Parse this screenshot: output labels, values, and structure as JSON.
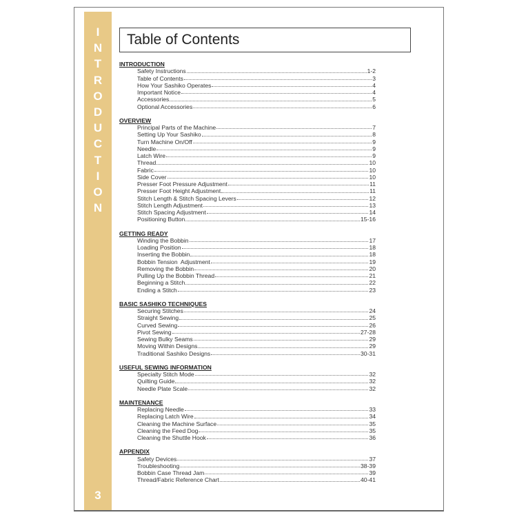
{
  "sidebar": {
    "label_letters": [
      "I",
      "N",
      "T",
      "R",
      "O",
      "D",
      "U",
      "C",
      "T",
      "I",
      "O",
      "N"
    ],
    "page_number": "3",
    "color": "#e8c987"
  },
  "title": "Table of Contents",
  "sections": [
    {
      "heading": "INTRODUCTION",
      "items": [
        {
          "label": "Safety Instructions",
          "page": "1-2"
        },
        {
          "label": "Table of Contents",
          "page": "3"
        },
        {
          "label": "How Your Sashiko Operates",
          "page": "4"
        },
        {
          "label": "Important Notice",
          "page": "4"
        },
        {
          "label": "Accessories",
          "page": "5"
        },
        {
          "label": "Optional Accessories",
          "page": "6"
        }
      ]
    },
    {
      "heading": "OVERVIEW",
      "items": [
        {
          "label": "Principal Parts of the Machine",
          "page": "7"
        },
        {
          "label": "Setting Up Your Sashiko",
          "page": "8"
        },
        {
          "label": "Turn Machine On/Off",
          "page": "9"
        },
        {
          "label": "Needle",
          "page": "9"
        },
        {
          "label": "Latch Wire",
          "page": "9"
        },
        {
          "label": "Thread",
          "page": "10"
        },
        {
          "label": "Fabric",
          "page": "10"
        },
        {
          "label": "Side Cover",
          "page": "10"
        },
        {
          "label": "Presser Foot Pressure Adjustment",
          "page": "11"
        },
        {
          "label": "Presser Foot Height Adjustment",
          "page": "11"
        },
        {
          "label": "Stitch Length & Stitch Spacing Levers",
          "page": "12"
        },
        {
          "label": "Stitch Length Adjustment",
          "page": "13"
        },
        {
          "label": "Stitch Spacing Adjustment",
          "page": "14"
        },
        {
          "label": "Positioning Button",
          "page": "15-16"
        }
      ]
    },
    {
      "heading": "GETTING READY",
      "items": [
        {
          "label": "Winding the Bobbin",
          "page": "17"
        },
        {
          "label": "Loading Position",
          "page": "18"
        },
        {
          "label": "Inserting the Bobbin",
          "page": "18"
        },
        {
          "label": "Bobbin Tension  Adjustment",
          "page": "19"
        },
        {
          "label": "Removing the Bobbin",
          "page": "20"
        },
        {
          "label": "Pulling Up the Bobbin Thread",
          "page": "21"
        },
        {
          "label": "Beginning a Stitch",
          "page": "22"
        },
        {
          "label": "Ending a Stitch",
          "page": "23"
        }
      ]
    },
    {
      "heading": "BASIC SASHIKO TECHNIQUES",
      "items": [
        {
          "label": "Securing Stitches",
          "page": "24"
        },
        {
          "label": "Straight Sewing",
          "page": "25"
        },
        {
          "label": "Curved Sewing",
          "page": "26"
        },
        {
          "label": "Pivot Sewing",
          "page": "27-28"
        },
        {
          "label": "Sewing Bulky Seams",
          "page": "29"
        },
        {
          "label": "Moving Within Designs",
          "page": "29"
        },
        {
          "label": "Traditional Sashiko Designs",
          "page": "30-31"
        }
      ]
    },
    {
      "heading": "USEFUL SEWING INFORMATION",
      "items": [
        {
          "label": "Specialty Stitch Mode",
          "page": "32"
        },
        {
          "label": "Quilting Guide",
          "page": "32"
        },
        {
          "label": "Needle Plate Scale",
          "page": "32"
        }
      ]
    },
    {
      "heading": "MAINTENANCE",
      "items": [
        {
          "label": "Replacing Needle",
          "page": "33"
        },
        {
          "label": "Replacing Latch Wire",
          "page": "34"
        },
        {
          "label": "Cleaning the Machine Surface",
          "page": "35"
        },
        {
          "label": "Cleaning the Feed Dog",
          "page": "35"
        },
        {
          "label": "Cleaning the Shuttle Hook",
          "page": "36"
        }
      ]
    },
    {
      "heading": "APPENDIX",
      "items": [
        {
          "label": "Safety Devices",
          "page": "37"
        },
        {
          "label": "Troubleshooting",
          "page": "38-39"
        },
        {
          "label": "Bobbin Case Thread Jam",
          "page": "39"
        },
        {
          "label": "Thread/Fabric Reference Chart",
          "page": "40-41"
        }
      ]
    }
  ]
}
